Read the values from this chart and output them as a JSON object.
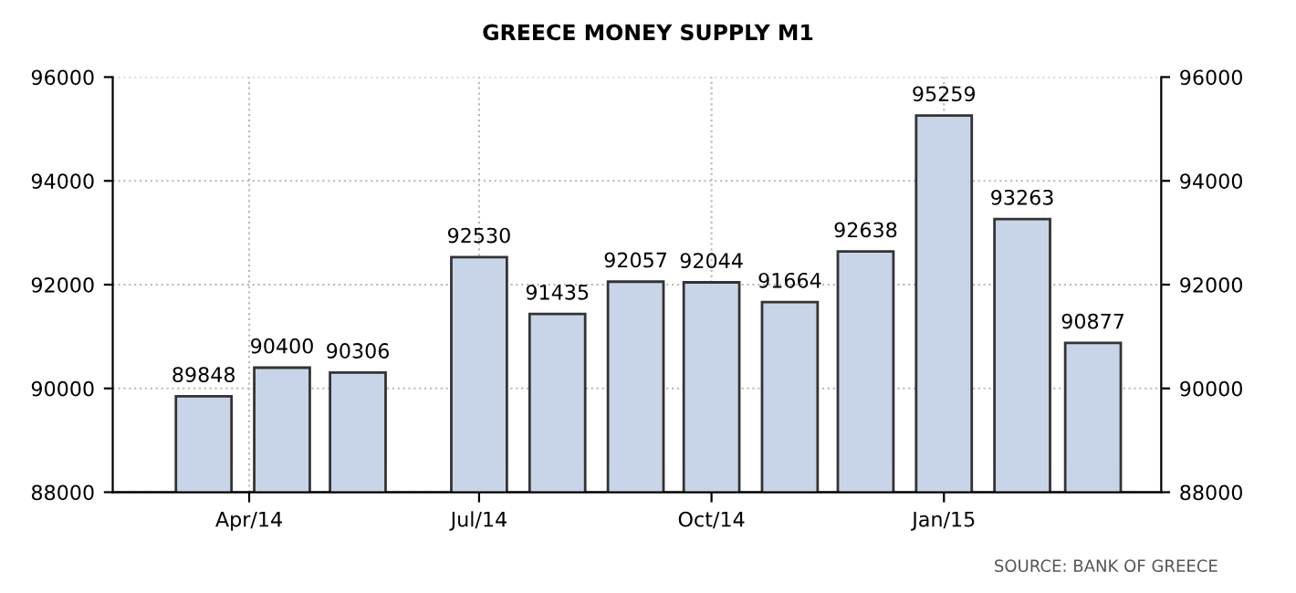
{
  "chart_data": {
    "type": "bar",
    "title": "GREECE MONEY SUPPLY M1",
    "x": [
      "2014-03-14",
      "2014-04-14",
      "2014-05-14",
      "2014-07-01",
      "2014-08-01",
      "2014-09-01",
      "2014-10-01",
      "2014-11-01",
      "2014-12-01",
      "2015-01-01",
      "2015-02-01",
      "2015-03-01"
    ],
    "series": [
      {
        "color": "#c8d5e9",
        "values": [
          89848,
          90400,
          90306,
          92530,
          91435,
          92057,
          92044,
          91664,
          92638,
          95259,
          93263,
          90877
        ]
      }
    ],
    "xlim": [
      "2014-02-06",
      "2015-03-28"
    ],
    "xticks": [
      {
        "value": "2014-04-01",
        "label": "Apr/14"
      },
      {
        "value": "2014-07-01",
        "label": "Jul/14"
      },
      {
        "value": "2014-10-01",
        "label": "Oct/14"
      },
      {
        "value": "2015-01-01",
        "label": "Jan/15"
      }
    ],
    "ylim": [
      88000,
      96000
    ],
    "yticks": [
      88000,
      90000,
      92000,
      94000,
      96000
    ],
    "y2lim": [
      88000,
      96000
    ],
    "y2ticks": [
      88000,
      90000,
      92000,
      94000,
      96000
    ],
    "grid": true,
    "data_labels": true,
    "annotations": [
      "SOURCE: BANK OF GREECE"
    ]
  }
}
